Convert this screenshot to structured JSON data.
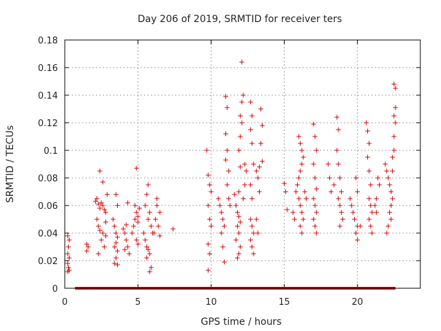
{
  "chart_data": {
    "type": "scatter",
    "title": "Day 206 of 2019, SRMTID for receiver ters",
    "xlabel": "GPS time / hours",
    "ylabel": "SRMTID / TECUs",
    "xlim": [
      0,
      24.3
    ],
    "ylim": [
      0,
      0.18
    ],
    "x_ticks": [
      0,
      5,
      10,
      15,
      20
    ],
    "x_tick_labels": [
      "0",
      "5",
      "10",
      "15",
      "20"
    ],
    "y_ticks": [
      0,
      0.02,
      0.04,
      0.06,
      0.08,
      0.1,
      0.12,
      0.14,
      0.16,
      0.18
    ],
    "y_tick_labels": [
      "0",
      "0.02",
      "0.04",
      "0.06",
      "0.08",
      "0.1",
      "0.12",
      "0.14",
      "0.16",
      "0.18"
    ],
    "grid": true,
    "marker": "+",
    "series": [
      {
        "name": "SRMTID",
        "color": "#d40000",
        "points": [
          [
            0.2,
            0.038
          ],
          [
            0.25,
            0.03
          ],
          [
            0.2,
            0.025
          ],
          [
            0.3,
            0.022
          ],
          [
            0.2,
            0.018
          ],
          [
            0.25,
            0.015
          ],
          [
            0.3,
            0.013
          ],
          [
            0.2,
            0.012
          ],
          [
            0.3,
            0.035
          ],
          [
            1.5,
            0.032
          ],
          [
            1.5,
            0.027
          ],
          [
            1.6,
            0.03
          ],
          [
            2.1,
            0.063
          ],
          [
            2.2,
            0.065
          ],
          [
            2.3,
            0.061
          ],
          [
            2.4,
            0.058
          ],
          [
            2.5,
            0.062
          ],
          [
            2.6,
            0.06
          ],
          [
            2.7,
            0.057
          ],
          [
            2.8,
            0.055
          ],
          [
            2.2,
            0.05
          ],
          [
            2.3,
            0.045
          ],
          [
            2.4,
            0.042
          ],
          [
            2.6,
            0.04
          ],
          [
            2.8,
            0.038
          ],
          [
            2.5,
            0.035
          ],
          [
            2.7,
            0.03
          ],
          [
            2.3,
            0.025
          ],
          [
            2.4,
            0.085
          ],
          [
            2.6,
            0.077
          ],
          [
            2.9,
            0.068
          ],
          [
            2.8,
            0.048
          ],
          [
            3.3,
            0.05
          ],
          [
            3.4,
            0.045
          ],
          [
            3.5,
            0.04
          ],
          [
            3.6,
            0.037
          ],
          [
            3.5,
            0.033
          ],
          [
            3.4,
            0.03
          ],
          [
            3.6,
            0.027
          ],
          [
            3.5,
            0.022
          ],
          [
            3.4,
            0.018
          ],
          [
            3.6,
            0.017
          ],
          [
            3.5,
            0.068
          ],
          [
            3.6,
            0.06
          ],
          [
            4.0,
            0.043
          ],
          [
            4.1,
            0.04
          ],
          [
            4.2,
            0.035
          ],
          [
            4.3,
            0.03
          ],
          [
            4.1,
            0.028
          ],
          [
            4.4,
            0.025
          ],
          [
            4.2,
            0.046
          ],
          [
            4.3,
            0.062
          ],
          [
            4.6,
            0.04
          ],
          [
            4.7,
            0.045
          ],
          [
            4.8,
            0.05
          ],
          [
            4.9,
            0.055
          ],
          [
            5.0,
            0.052
          ],
          [
            4.8,
            0.06
          ],
          [
            4.9,
            0.035
          ],
          [
            5.0,
            0.032
          ],
          [
            4.9,
            0.087
          ],
          [
            5.1,
            0.058
          ],
          [
            5.0,
            0.048
          ],
          [
            5.4,
            0.04
          ],
          [
            5.5,
            0.035
          ],
          [
            5.6,
            0.03
          ],
          [
            5.7,
            0.028
          ],
          [
            5.8,
            0.025
          ],
          [
            5.6,
            0.022
          ],
          [
            5.7,
            0.05
          ],
          [
            5.8,
            0.055
          ],
          [
            5.6,
            0.068
          ],
          [
            5.7,
            0.075
          ],
          [
            5.9,
            0.045
          ],
          [
            6.0,
            0.04
          ],
          [
            5.5,
            0.06
          ],
          [
            5.9,
            0.015
          ],
          [
            5.8,
            0.012
          ],
          [
            6.1,
            0.04
          ],
          [
            6.2,
            0.05
          ],
          [
            6.3,
            0.06
          ],
          [
            6.4,
            0.045
          ],
          [
            6.5,
            0.055
          ],
          [
            6.3,
            0.065
          ],
          [
            6.5,
            0.038
          ],
          [
            7.4,
            0.043
          ],
          [
            9.7,
            0.1
          ],
          [
            9.8,
            0.082
          ],
          [
            9.9,
            0.075
          ],
          [
            10.0,
            0.07
          ],
          [
            9.8,
            0.06
          ],
          [
            9.9,
            0.05
          ],
          [
            10.0,
            0.045
          ],
          [
            9.8,
            0.032
          ],
          [
            9.9,
            0.025
          ],
          [
            9.8,
            0.013
          ],
          [
            10.5,
            0.065
          ],
          [
            10.6,
            0.06
          ],
          [
            10.7,
            0.055
          ],
          [
            10.8,
            0.05
          ],
          [
            10.9,
            0.045
          ],
          [
            10.7,
            0.04
          ],
          [
            10.8,
            0.03
          ],
          [
            10.9,
            0.019
          ],
          [
            11.0,
            0.139
          ],
          [
            11.1,
            0.131
          ],
          [
            11.0,
            0.112
          ],
          [
            11.1,
            0.1
          ],
          [
            11.0,
            0.093
          ],
          [
            11.2,
            0.085
          ],
          [
            11.1,
            0.075
          ],
          [
            11.2,
            0.065
          ],
          [
            11.3,
            0.06
          ],
          [
            11.6,
            0.068
          ],
          [
            11.7,
            0.06
          ],
          [
            11.8,
            0.055
          ],
          [
            11.9,
            0.052
          ],
          [
            12.0,
            0.048
          ],
          [
            11.8,
            0.045
          ],
          [
            11.9,
            0.04
          ],
          [
            11.7,
            0.035
          ],
          [
            12.0,
            0.03
          ],
          [
            11.9,
            0.025
          ],
          [
            11.8,
            0.022
          ],
          [
            11.9,
            0.07
          ],
          [
            12.0,
            0.088
          ],
          [
            11.9,
            0.1
          ],
          [
            12.0,
            0.11
          ],
          [
            12.1,
            0.12
          ],
          [
            12.0,
            0.125
          ],
          [
            12.1,
            0.135
          ],
          [
            12.2,
            0.14
          ],
          [
            12.1,
            0.164
          ],
          [
            12.3,
            0.09
          ],
          [
            12.4,
            0.085
          ],
          [
            12.3,
            0.075
          ],
          [
            12.2,
            0.065
          ],
          [
            12.7,
            0.135
          ],
          [
            12.8,
            0.125
          ],
          [
            12.7,
            0.115
          ],
          [
            12.8,
            0.105
          ],
          [
            12.9,
            0.09
          ],
          [
            12.7,
            0.075
          ],
          [
            12.8,
            0.065
          ],
          [
            12.7,
            0.05
          ],
          [
            12.8,
            0.045
          ],
          [
            12.9,
            0.04
          ],
          [
            12.7,
            0.035
          ],
          [
            12.8,
            0.03
          ],
          [
            12.9,
            0.025
          ],
          [
            13.1,
            0.085
          ],
          [
            13.2,
            0.08
          ],
          [
            13.3,
            0.07
          ],
          [
            13.1,
            0.05
          ],
          [
            13.2,
            0.04
          ],
          [
            13.4,
            0.13
          ],
          [
            13.5,
            0.118
          ],
          [
            13.4,
            0.105
          ],
          [
            13.5,
            0.092
          ],
          [
            13.3,
            0.088
          ],
          [
            15.0,
            0.076
          ],
          [
            15.1,
            0.07
          ],
          [
            15.2,
            0.057
          ],
          [
            15.6,
            0.055
          ],
          [
            15.7,
            0.05
          ],
          [
            15.8,
            0.07
          ],
          [
            15.9,
            0.075
          ],
          [
            16.0,
            0.08
          ],
          [
            16.1,
            0.085
          ],
          [
            16.2,
            0.09
          ],
          [
            16.0,
            0.065
          ],
          [
            16.1,
            0.06
          ],
          [
            16.2,
            0.055
          ],
          [
            16.3,
            0.05
          ],
          [
            16.1,
            0.045
          ],
          [
            16.2,
            0.04
          ],
          [
            16.0,
            0.11
          ],
          [
            16.1,
            0.105
          ],
          [
            16.2,
            0.1
          ],
          [
            16.3,
            0.095
          ],
          [
            16.4,
            0.07
          ],
          [
            16.5,
            0.065
          ],
          [
            17.0,
            0.119
          ],
          [
            17.1,
            0.11
          ],
          [
            17.2,
            0.1
          ],
          [
            17.0,
            0.09
          ],
          [
            17.1,
            0.08
          ],
          [
            17.2,
            0.072
          ],
          [
            17.0,
            0.065
          ],
          [
            17.1,
            0.06
          ],
          [
            17.2,
            0.055
          ],
          [
            17.0,
            0.05
          ],
          [
            17.1,
            0.045
          ],
          [
            17.2,
            0.04
          ],
          [
            18.0,
            0.09
          ],
          [
            18.1,
            0.08
          ],
          [
            18.2,
            0.07
          ],
          [
            18.4,
            0.075
          ],
          [
            18.6,
            0.124
          ],
          [
            18.7,
            0.115
          ],
          [
            18.6,
            0.1
          ],
          [
            18.7,
            0.09
          ],
          [
            18.8,
            0.08
          ],
          [
            18.9,
            0.07
          ],
          [
            18.7,
            0.065
          ],
          [
            18.8,
            0.06
          ],
          [
            18.9,
            0.055
          ],
          [
            19.0,
            0.05
          ],
          [
            18.8,
            0.045
          ],
          [
            19.5,
            0.065
          ],
          [
            19.6,
            0.06
          ],
          [
            19.7,
            0.055
          ],
          [
            19.9,
            0.08
          ],
          [
            19.8,
            0.05
          ],
          [
            20.0,
            0.045
          ],
          [
            19.9,
            0.04
          ],
          [
            20.0,
            0.035
          ],
          [
            20.2,
            0.045
          ],
          [
            20.0,
            0.07
          ],
          [
            20.6,
            0.12
          ],
          [
            20.7,
            0.114
          ],
          [
            20.8,
            0.105
          ],
          [
            20.7,
            0.095
          ],
          [
            20.8,
            0.085
          ],
          [
            20.9,
            0.075
          ],
          [
            20.8,
            0.065
          ],
          [
            20.9,
            0.06
          ],
          [
            21.0,
            0.055
          ],
          [
            20.8,
            0.05
          ],
          [
            20.9,
            0.045
          ],
          [
            21.0,
            0.04
          ],
          [
            21.3,
            0.065
          ],
          [
            21.4,
            0.08
          ],
          [
            21.5,
            0.075
          ],
          [
            21.2,
            0.06
          ],
          [
            21.3,
            0.055
          ],
          [
            21.9,
            0.09
          ],
          [
            22.0,
            0.085
          ],
          [
            22.1,
            0.08
          ],
          [
            22.2,
            0.075
          ],
          [
            22.3,
            0.07
          ],
          [
            22.4,
            0.065
          ],
          [
            22.3,
            0.06
          ],
          [
            22.2,
            0.055
          ],
          [
            22.3,
            0.05
          ],
          [
            22.1,
            0.045
          ],
          [
            22.0,
            0.04
          ],
          [
            22.4,
            0.095
          ],
          [
            22.5,
            0.1
          ],
          [
            22.5,
            0.11
          ],
          [
            22.6,
            0.12
          ],
          [
            22.5,
            0.125
          ],
          [
            22.6,
            0.131
          ],
          [
            22.6,
            0.145
          ],
          [
            22.5,
            0.148
          ],
          [
            22.4,
            0.085
          ]
        ],
        "zero_segments": [
          [
            0.7,
            22.6
          ]
        ]
      }
    ]
  }
}
